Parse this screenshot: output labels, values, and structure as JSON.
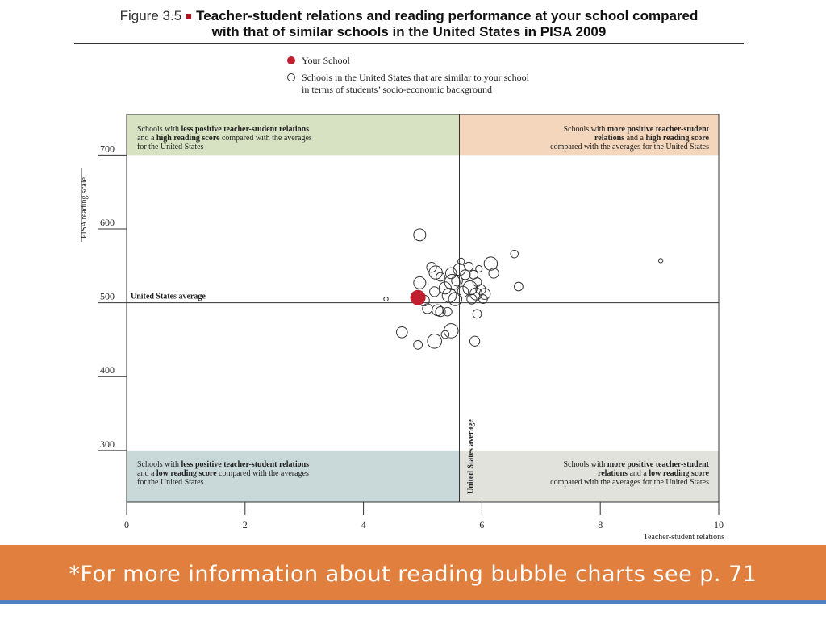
{
  "figure": {
    "label": "Figure 3.5",
    "title_line1": "Teacher-student relations and reading performance at your school compared",
    "title_line2": "with that of similar schools in the United States in PISA 2009"
  },
  "legend": {
    "your_school": "Your School",
    "similar_schools_line1": "Schools in the United States that are similar to your school",
    "similar_schools_line2": "in terms of students’ socio-economic background"
  },
  "quadrants": {
    "top_left": [
      "Schools with less positive teacher-student relations",
      "and a high reading score compared with the averages",
      "for the United States"
    ],
    "top_right": [
      "Schools with more positive teacher-student",
      "relations and a high reading score",
      "compared with the averages for the United States"
    ],
    "bottom_left": [
      "Schools with less positive teacher-student relations",
      "and a low reading score compared with the averages",
      "for the United States"
    ],
    "bottom_right": [
      "Schools with more positive teacher-student",
      "relations and a low reading score",
      "compared with the averages for the United States"
    ]
  },
  "footer": {
    "text": "*For more information about reading bubble charts see p. 71"
  },
  "colors": {
    "top_left_band": "#d6e2c2",
    "top_right_band": "#f3d6bb",
    "bottom_left_band": "#c9d8d9",
    "bottom_right_band": "#e2e2dc",
    "your_school": "#c0202e",
    "footer_bar": "#e07f3e",
    "footer_line": "#4f7fbf"
  },
  "chart_data": {
    "type": "scatter",
    "xlabel": "Teacher-student relations",
    "ylabel": "PISA reading scale",
    "xlim": [
      0,
      10
    ],
    "ylim": [
      230,
      755
    ],
    "x_ticks": [
      0,
      2,
      4,
      6,
      8,
      10
    ],
    "y_ticks": [
      300,
      400,
      500,
      600,
      700
    ],
    "high_band_y_min": 700,
    "low_band_y_max": 300,
    "reference_lines": {
      "y_average": 500,
      "y_average_label": "United States average",
      "x_average": 5.62,
      "x_average_label": "United States average"
    },
    "your_school": {
      "x": 4.92,
      "y": 507,
      "size": 3.0
    },
    "similar_schools": [
      {
        "x": 4.38,
        "y": 505,
        "size": 0.8
      },
      {
        "x": 4.95,
        "y": 592,
        "size": 2.2
      },
      {
        "x": 4.95,
        "y": 527,
        "size": 2.2
      },
      {
        "x": 5.02,
        "y": 503,
        "size": 2.0
      },
      {
        "x": 5.08,
        "y": 492,
        "size": 1.8
      },
      {
        "x": 5.15,
        "y": 548,
        "size": 1.8
      },
      {
        "x": 5.22,
        "y": 541,
        "size": 2.4
      },
      {
        "x": 5.2,
        "y": 515,
        "size": 1.8
      },
      {
        "x": 5.25,
        "y": 490,
        "size": 2.0
      },
      {
        "x": 5.3,
        "y": 535,
        "size": 1.6
      },
      {
        "x": 5.38,
        "y": 520,
        "size": 2.2
      },
      {
        "x": 5.45,
        "y": 510,
        "size": 2.6
      },
      {
        "x": 5.48,
        "y": 540,
        "size": 2.0
      },
      {
        "x": 5.42,
        "y": 488,
        "size": 1.6
      },
      {
        "x": 5.5,
        "y": 528,
        "size": 2.8
      },
      {
        "x": 5.55,
        "y": 505,
        "size": 2.4
      },
      {
        "x": 5.58,
        "y": 530,
        "size": 2.0
      },
      {
        "x": 5.62,
        "y": 545,
        "size": 2.2
      },
      {
        "x": 5.65,
        "y": 556,
        "size": 1.2
      },
      {
        "x": 5.68,
        "y": 515,
        "size": 2.0
      },
      {
        "x": 5.72,
        "y": 538,
        "size": 1.8
      },
      {
        "x": 5.78,
        "y": 549,
        "size": 1.6
      },
      {
        "x": 5.8,
        "y": 520,
        "size": 2.6
      },
      {
        "x": 5.83,
        "y": 505,
        "size": 1.8
      },
      {
        "x": 5.86,
        "y": 538,
        "size": 1.6
      },
      {
        "x": 5.9,
        "y": 512,
        "size": 2.2
      },
      {
        "x": 5.92,
        "y": 528,
        "size": 1.6
      },
      {
        "x": 5.95,
        "y": 546,
        "size": 1.2
      },
      {
        "x": 5.98,
        "y": 518,
        "size": 1.8
      },
      {
        "x": 6.02,
        "y": 505,
        "size": 1.6
      },
      {
        "x": 6.05,
        "y": 512,
        "size": 2.0
      },
      {
        "x": 6.15,
        "y": 553,
        "size": 2.4
      },
      {
        "x": 6.2,
        "y": 540,
        "size": 1.8
      },
      {
        "x": 6.55,
        "y": 566,
        "size": 1.4
      },
      {
        "x": 6.62,
        "y": 522,
        "size": 1.6
      },
      {
        "x": 5.92,
        "y": 485,
        "size": 1.6
      },
      {
        "x": 5.3,
        "y": 488,
        "size": 1.8
      },
      {
        "x": 4.65,
        "y": 460,
        "size": 2.0
      },
      {
        "x": 4.92,
        "y": 443,
        "size": 1.6
      },
      {
        "x": 5.2,
        "y": 448,
        "size": 2.6
      },
      {
        "x": 5.38,
        "y": 457,
        "size": 1.4
      },
      {
        "x": 5.48,
        "y": 462,
        "size": 2.6
      },
      {
        "x": 5.88,
        "y": 448,
        "size": 1.8
      },
      {
        "x": 9.02,
        "y": 557,
        "size": 0.8
      }
    ]
  }
}
